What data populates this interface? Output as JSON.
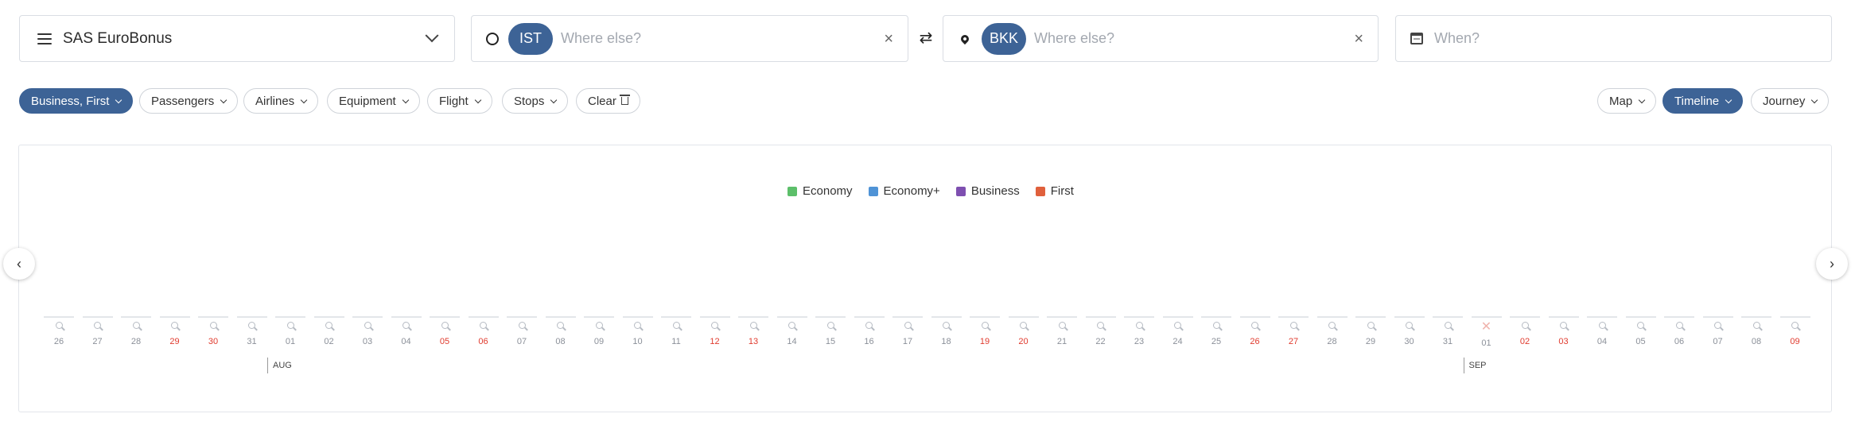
{
  "search": {
    "program": {
      "label": "SAS EuroBonus"
    },
    "origin": {
      "code": "IST",
      "placeholder": "Where else?"
    },
    "destination": {
      "code": "BKK",
      "placeholder": "Where else?"
    },
    "when": {
      "placeholder": "When?"
    }
  },
  "filters": {
    "left": [
      {
        "label": "Business, First",
        "active": true
      },
      {
        "label": "Passengers",
        "active": false
      },
      {
        "label": "Airlines",
        "active": false
      },
      {
        "label": "Equipment",
        "active": false
      },
      {
        "label": "Flight",
        "active": false
      },
      {
        "label": "Stops",
        "active": false
      }
    ],
    "clear_label": "Clear",
    "views": [
      {
        "label": "Map",
        "active": false
      },
      {
        "label": "Timeline",
        "active": true
      },
      {
        "label": "Journey",
        "active": false
      }
    ]
  },
  "legend": [
    {
      "label": "Economy",
      "color": "#5cbf6a"
    },
    {
      "label": "Economy+",
      "color": "#4f93d6"
    },
    {
      "label": "Business",
      "color": "#7e4fb0"
    },
    {
      "label": "First",
      "color": "#e0603c"
    }
  ],
  "timeline": {
    "days": [
      "26",
      "27",
      "28",
      "29",
      "30",
      "31",
      "01",
      "02",
      "03",
      "04",
      "05",
      "06",
      "07",
      "08",
      "09",
      "10",
      "11",
      "12",
      "13",
      "14",
      "15",
      "16",
      "17",
      "18",
      "19",
      "20",
      "21",
      "22",
      "23",
      "24",
      "25",
      "26",
      "27",
      "28",
      "29",
      "30",
      "31",
      "01",
      "02",
      "03",
      "04",
      "05",
      "06",
      "07",
      "08",
      "09"
    ],
    "weekend_indices": [
      3,
      4,
      10,
      11,
      17,
      18,
      24,
      25,
      31,
      32,
      38,
      39,
      45
    ],
    "no_result_indices": [
      37
    ],
    "months": [
      {
        "label": "AUG",
        "day_index": 6
      },
      {
        "label": "SEP",
        "day_index": 37
      }
    ]
  }
}
